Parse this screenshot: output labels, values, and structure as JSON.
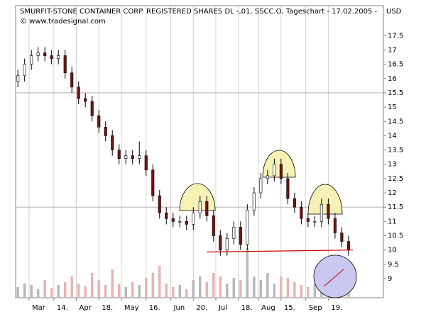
{
  "chart_data": {
    "type": "candlestick",
    "title": "SMURFIT-STONE CONTAINER CORP. REGISTERED SHARES DL -,01, SSCC.O, Tageschart - 17.02.2005 -",
    "currency": "USD",
    "subtitle": "© www.tradesignal.com",
    "x": [
      0,
      3,
      6,
      9,
      12,
      15,
      18,
      21,
      24,
      27,
      30,
      33,
      36,
      39,
      42,
      45,
      48,
      51,
      54,
      57,
      60,
      63,
      66,
      69,
      72,
      75,
      78,
      81,
      84,
      87,
      90,
      93,
      96,
      99,
      102,
      105,
      108,
      111,
      114,
      117,
      120,
      123,
      126,
      129,
      132,
      135,
      138,
      141,
      144,
      147
    ],
    "open": [
      15.9,
      16.1,
      16.5,
      16.8,
      16.9,
      16.8,
      16.7,
      16.8,
      16.2,
      15.7,
      15.3,
      15.2,
      14.7,
      14.3,
      14.0,
      13.5,
      13.2,
      13.3,
      13.2,
      13.3,
      12.8,
      11.9,
      11.3,
      11.1,
      11.0,
      11.0,
      10.9,
      11.3,
      11.7,
      11.2,
      10.5,
      10.0,
      10.4,
      10.8,
      10.2,
      11.4,
      12.0,
      12.5,
      12.6,
      13.0,
      12.5,
      11.8,
      11.5,
      11.1,
      11.0,
      11.0,
      11.6,
      11.1,
      10.6,
      10.3
    ],
    "high": [
      16.3,
      16.7,
      17.0,
      17.1,
      17.1,
      17.0,
      17.0,
      17.0,
      16.4,
      15.9,
      15.5,
      15.4,
      14.9,
      14.5,
      14.2,
      13.7,
      13.5,
      13.5,
      13.8,
      13.5,
      13.0,
      12.1,
      11.5,
      11.3,
      11.2,
      11.2,
      11.5,
      11.9,
      11.9,
      11.4,
      10.7,
      10.6,
      11.0,
      11.0,
      11.6,
      12.2,
      12.7,
      12.8,
      13.2,
      13.2,
      12.7,
      12.0,
      11.7,
      11.3,
      11.2,
      11.8,
      11.8,
      11.3,
      10.8,
      10.5
    ],
    "low": [
      15.7,
      15.9,
      16.3,
      16.6,
      16.6,
      16.5,
      16.5,
      16.0,
      15.5,
      15.1,
      15.0,
      14.5,
      14.1,
      13.8,
      13.3,
      13.0,
      13.0,
      13.0,
      13.0,
      12.6,
      11.7,
      11.1,
      10.9,
      10.8,
      10.8,
      10.7,
      10.7,
      11.1,
      11.0,
      10.3,
      9.8,
      9.8,
      10.2,
      10.0,
      10.0,
      11.2,
      11.8,
      12.3,
      12.4,
      12.3,
      11.6,
      11.3,
      10.9,
      10.8,
      10.8,
      10.8,
      10.9,
      10.4,
      10.1,
      9.8
    ],
    "close": [
      16.1,
      16.5,
      16.8,
      16.9,
      16.8,
      16.7,
      16.8,
      16.2,
      15.7,
      15.3,
      15.2,
      14.7,
      14.3,
      14.0,
      13.5,
      13.2,
      13.3,
      13.2,
      13.3,
      12.8,
      11.9,
      11.3,
      11.1,
      11.0,
      11.0,
      10.9,
      11.3,
      11.7,
      11.2,
      10.5,
      10.0,
      10.4,
      10.8,
      10.2,
      11.4,
      12.0,
      12.5,
      12.6,
      13.0,
      12.5,
      11.8,
      11.5,
      11.1,
      11.0,
      11.0,
      11.6,
      11.1,
      10.6,
      10.3,
      10.0
    ],
    "volume": [
      15,
      20,
      18,
      12,
      25,
      14,
      18,
      22,
      30,
      20,
      16,
      35,
      25,
      18,
      40,
      20,
      15,
      22,
      18,
      28,
      35,
      45,
      20,
      15,
      18,
      12,
      25,
      30,
      22,
      35,
      30,
      20,
      28,
      25,
      70,
      30,
      25,
      35,
      20,
      30,
      28,
      22,
      18,
      15,
      20,
      25,
      30,
      35,
      40,
      45
    ],
    "up_color": "#ffffff",
    "down_color": "#7a1010",
    "volume_up_color": "#b8b8b8",
    "volume_down_color": "#e8b4b4",
    "xlim": [
      -1,
      162.5
    ],
    "ylim": [
      8.33,
      18.55
    ],
    "y2lim": [
      0,
      100
    ],
    "yticks": [
      9,
      9.5,
      10,
      10.5,
      11,
      11.5,
      12,
      12.5,
      13,
      13.5,
      14,
      14.5,
      15,
      15.5,
      16,
      16.5,
      17,
      17.5
    ],
    "xticks": [
      {
        "value": 5,
        "label": "Mar"
      },
      {
        "value": 16,
        "label": "14."
      },
      {
        "value": 26,
        "label": "Apr"
      },
      {
        "value": 36,
        "label": "18."
      },
      {
        "value": 46,
        "label": "May"
      },
      {
        "value": 57,
        "label": "16."
      },
      {
        "value": 68,
        "label": "Jun"
      },
      {
        "value": 78,
        "label": "20."
      },
      {
        "value": 88,
        "label": "Jul"
      },
      {
        "value": 98,
        "label": "18."
      },
      {
        "value": 107,
        "label": "Aug"
      },
      {
        "value": 117,
        "label": "15."
      },
      {
        "value": 128,
        "label": "Sep"
      },
      {
        "value": 138,
        "label": "19."
      }
    ],
    "hlines": [
      15.5,
      11.5
    ],
    "trendline": {
      "x": [
        84,
        149
      ],
      "y": [
        9.93,
        10.0
      ],
      "color": "#cc0000"
    }
  }
}
